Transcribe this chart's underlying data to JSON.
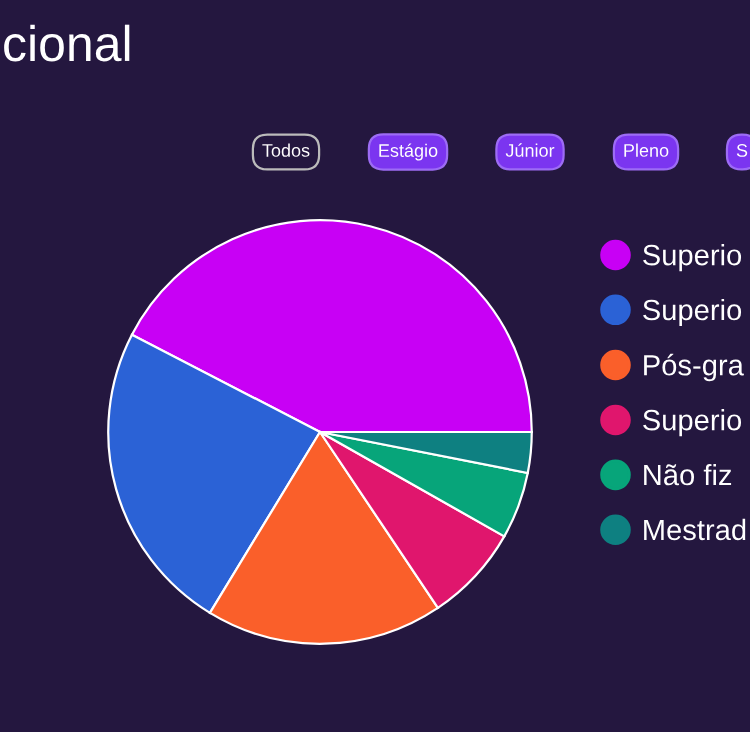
{
  "chart_data": {
    "type": "pie",
    "title": "cional",
    "annotations": [
      "Todos",
      "Estágio",
      "Júnior",
      "Pleno",
      "S"
    ],
    "categories": [
      "Superio",
      "Superio",
      "Pós-gra",
      "Superio",
      "Não fiz",
      "Mestrad"
    ],
    "values": [
      42.4,
      23.9,
      18.1,
      7.4,
      5.1,
      3.1
    ],
    "colors": [
      "#c800f5",
      "#2b62d6",
      "#fa5f2a",
      "#e0166d",
      "#07a57a",
      "#0e8081"
    ],
    "legend": "right"
  }
}
